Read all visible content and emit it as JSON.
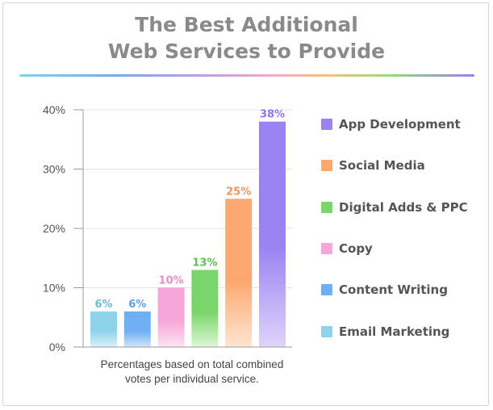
{
  "header": {
    "title_line1": "The Best Additional",
    "title_line2": "Web Services to Provide"
  },
  "footnote": {
    "line1": "Percentages based on total combined",
    "line2": "votes per individual service."
  },
  "colors": {
    "title": "#8a8a8a",
    "axis": "#9a9a9a",
    "grid": "#e3e3e3"
  },
  "chart_data": {
    "type": "bar",
    "title": "The Best Additional Web Services to Provide",
    "xlabel": "",
    "ylabel": "",
    "ylim": [
      0,
      40
    ],
    "y_ticks": [
      "0%",
      "10%",
      "20%",
      "30%",
      "40%"
    ],
    "y_tick_values": [
      0,
      10,
      20,
      30,
      40
    ],
    "grid": true,
    "legend_position": "right",
    "bar_order": [
      "Email Marketing",
      "Content Writing",
      "Copy",
      "Digital Adds & PPC",
      "Social Media",
      "App Development"
    ],
    "values": [
      6,
      6,
      10,
      13,
      25,
      38
    ],
    "data_labels": [
      "6%",
      "6%",
      "10%",
      "13%",
      "25%",
      "38%"
    ],
    "bar_colors": [
      [
        "#8fd3ea",
        "#d8f1f8"
      ],
      [
        "#6fb0f3",
        "#cfe4fb"
      ],
      [
        "#f6a6d8",
        "#fde3f2"
      ],
      [
        "#7ad66b",
        "#def6d7"
      ],
      [
        "#fba86e",
        "#fee5d2"
      ],
      [
        "#9a82f0",
        "#ded4fb"
      ]
    ],
    "label_colors": [
      "#74b9d3",
      "#5f9fe0",
      "#e68fc6",
      "#5ebc53",
      "#f0955a",
      "#8d76e4"
    ],
    "legend": [
      {
        "label": "App Development",
        "color": "#9a82f0"
      },
      {
        "label": "Social Media",
        "color": "#fba86e"
      },
      {
        "label": "Digital Adds & PPC",
        "color": "#7ad66b"
      },
      {
        "label": "Copy",
        "color": "#f6a6d8"
      },
      {
        "label": "Content Writing",
        "color": "#6fb0f3"
      },
      {
        "label": "Email Marketing",
        "color": "#8fd3ea"
      }
    ]
  }
}
